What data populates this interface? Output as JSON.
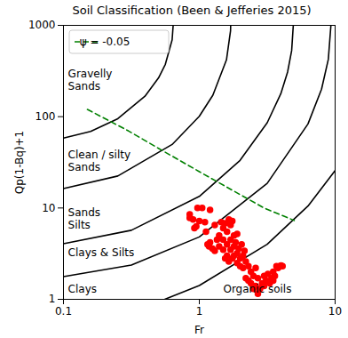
{
  "chart_data": {
    "type": "line",
    "title": "Soil Classification (Been & Jefferies 2015)",
    "x_label": "Fr",
    "y_label": "Qp(1-Bq)+1",
    "log": true,
    "xlim": [
      0.1,
      10
    ],
    "ylim": [
      1,
      1000
    ],
    "xticks": [
      0.1,
      1,
      10
    ],
    "yticks": [
      1,
      10,
      100,
      1000
    ],
    "legend": "upper left",
    "series": [
      {
        "type": "line",
        "color": "black",
        "line_style": "solid",
        "x": [
          0.1,
          0.1585,
          0.2512,
          0.3981,
          0.5012,
          0.5623,
          0.631,
          0.642
        ],
        "values": [
          58.3,
          68.8,
          95.1,
          167.5,
          266,
          374.6,
          695,
          1000
        ]
      },
      {
        "type": "line",
        "color": "black",
        "line_style": "solid",
        "x": [
          0.1,
          0.2512,
          0.631,
          1,
          1.259,
          1.585,
          1.698,
          1.702
        ],
        "values": [
          16.3,
          22.4,
          49.6,
          101,
          172,
          419,
          871,
          1000
        ]
      },
      {
        "type": "line",
        "color": "black",
        "line_style": "solid",
        "x": [
          0.1,
          0.3162,
          1,
          1.995,
          3.162,
          3.981,
          4.467,
          4.786,
          4.92
        ],
        "values": [
          4.06,
          5.7,
          13.4,
          33.2,
          85.8,
          178,
          308,
          529,
          1000
        ]
      },
      {
        "type": "line",
        "color": "black",
        "line_style": "solid",
        "x": [
          0.1,
          0.3162,
          1,
          3.162,
          6.31,
          7.943,
          8.913,
          9.31
        ],
        "values": [
          1.77,
          2.37,
          4.82,
          18.6,
          83.2,
          200,
          425,
          1000
        ]
      },
      {
        "type": "line",
        "color": "black",
        "line_style": "solid",
        "x": [
          0.557,
          1,
          3.162,
          6.31,
          10
        ],
        "values": [
          1,
          1.415,
          4.01,
          10.5,
          25.7
        ]
      },
      {
        "name": "ψ = -0.05",
        "type": "line",
        "color": "green",
        "line_style": "dashed",
        "x": [
          0.15,
          0.3,
          0.5,
          1,
          2,
          3,
          5
        ],
        "values": [
          120,
          70,
          45,
          25,
          14,
          10,
          7.3
        ]
      },
      {
        "type": "scatter",
        "color": "red",
        "marker": "circle",
        "x": [
          0.85,
          0.85,
          0.9,
          0.92,
          0.95,
          0.97,
          1.0,
          1.05,
          1.1,
          1.12,
          1.15,
          1.18,
          1.2,
          1.2,
          1.25,
          1.3,
          1.3,
          1.35,
          1.4,
          1.4,
          1.45,
          1.5,
          1.5,
          1.5,
          1.55,
          1.6,
          1.6,
          1.6,
          1.65,
          1.65,
          1.7,
          1.7,
          1.7,
          1.75,
          1.8,
          1.8,
          1.8,
          1.85,
          1.9,
          1.9,
          1.9,
          1.95,
          2.0,
          2.0,
          2.05,
          2.1,
          2.1,
          2.2,
          2.2,
          2.3,
          2.3,
          2.4,
          2.4,
          2.5,
          2.5,
          2.6,
          2.6,
          2.7,
          2.7,
          2.8,
          2.9,
          3.0,
          3.0,
          3.1,
          3.2,
          3.3,
          3.4,
          3.5,
          3.5,
          3.6,
          3.7,
          3.8,
          3.9,
          4.0,
          4.1,
          1.55,
          1.75,
          2.15
        ],
        "values": [
          8.5,
          7.8,
          7.5,
          6,
          6.3,
          10,
          7.2,
          10,
          7,
          5.5,
          4,
          3.8,
          9.5,
          4.2,
          3.6,
          3.4,
          6.5,
          4.5,
          5,
          3.8,
          7,
          6,
          4.5,
          3.5,
          2.8,
          5.5,
          4,
          3,
          7.5,
          2.6,
          6.5,
          4.5,
          3.5,
          2.8,
          5,
          3.8,
          3,
          4.2,
          5.2,
          3.2,
          2.5,
          3.6,
          2.8,
          2.3,
          4,
          3,
          2.2,
          2.6,
          1.7,
          2.3,
          1.6,
          2.0,
          1.5,
          1.8,
          1.3,
          2.2,
          1.4,
          1.15,
          1.7,
          1.3,
          1.5,
          1.8,
          1.4,
          1.6,
          1.9,
          1.5,
          1.7,
          2.0,
          1.6,
          1.8,
          2.3,
          2.2,
          2.3,
          2.35,
          2.3,
          6.8,
          7.2,
          3.4
        ]
      }
    ],
    "annotations": [
      {
        "text": "Gravelly\nSands",
        "x": 0.108,
        "y": 254
      },
      {
        "text": "Clean / silty\nSands",
        "x": 0.108,
        "y": 33
      },
      {
        "text": "Sands\nSilts",
        "x": 0.108,
        "y": 7.7
      },
      {
        "text": "Clays & Silts",
        "x": 0.108,
        "y": 3.28
      },
      {
        "text": "Clays",
        "x": 0.108,
        "y": 1.31
      },
      {
        "text": "Organic soils",
        "x": 1.5,
        "y": 1.31
      }
    ]
  }
}
